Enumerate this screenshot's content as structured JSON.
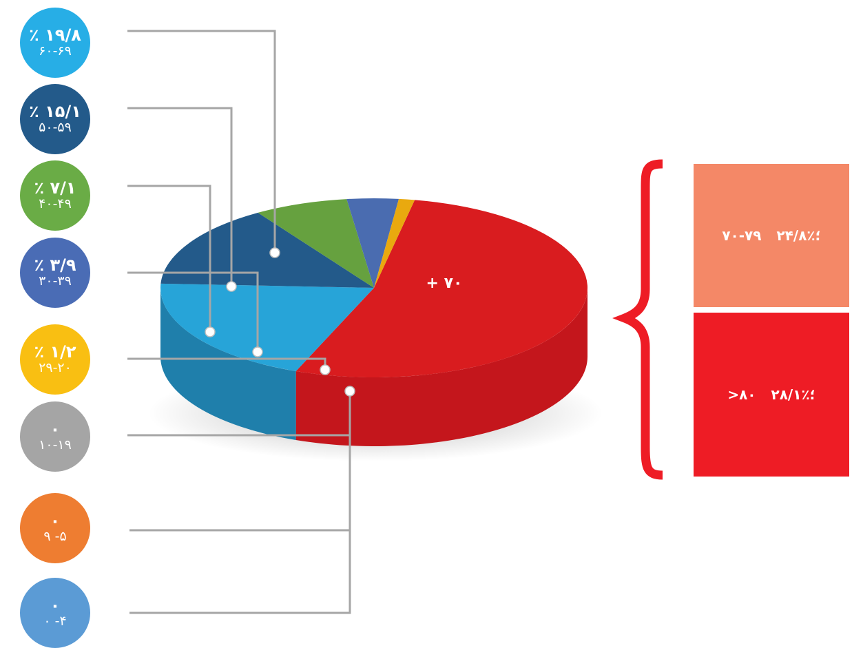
{
  "chart_data": {
    "type": "pie",
    "slices": [
      {
        "name": "+ ۷۰",
        "value": 52.9,
        "color": "#d91c1f",
        "side_color": "#c4161c"
      },
      {
        "name": "۶۰-۶۹",
        "value": 19.8,
        "color": "#27a4d8",
        "side_color": "#1f7fab"
      },
      {
        "name": "۵۰-۵۹",
        "value": 15.1,
        "color": "#235a8a",
        "side_color": "#1a4168"
      },
      {
        "name": "۴۰-۴۹",
        "value": 7.1,
        "color": "#66a13f",
        "side_color": "#44732b"
      },
      {
        "name": "۳۰-۳۹",
        "value": 3.9,
        "color": "#4a6cb0",
        "side_color": "#2f4a83"
      },
      {
        "name": "۲۹-۲۰",
        "value": 1.2,
        "color": "#e9a90f",
        "side_color": "#b38108"
      },
      {
        "name": "۱۰-۱۹",
        "value": 0,
        "color": "#a5a5a5",
        "side_color": "#7d7d7d"
      },
      {
        "name": "۹ -۵",
        "value": 0,
        "color": "#ee7d31",
        "side_color": "#b85e20"
      },
      {
        "name": "۰ -۴",
        "value": 0,
        "color": "#5b9bd5",
        "side_color": "#3f76a8"
      }
    ],
    "center_label": "+ ۷۰"
  },
  "labels": [
    {
      "pct": "٪ ۱۹/۸",
      "range": "۶۰-۶۹",
      "color": "#27aee6"
    },
    {
      "pct": "٪ ۱۵/۱",
      "range": "۵۰-۵۹",
      "color": "#235a8a"
    },
    {
      "pct": "٪ ۷/۱",
      "range": "۴۰-۴۹",
      "color": "#6aac46"
    },
    {
      "pct": "٪ ۳/۹",
      "range": "۳۰-۳۹",
      "color": "#4a6cb5"
    },
    {
      "pct": "٪ ۱/۲",
      "range": "۲۹-۲۰",
      "color": "#f9bf12"
    },
    {
      "pct": "۰",
      "range": "۱۰-۱۹",
      "color": "#a5a5a5"
    },
    {
      "pct": "۰",
      "range": "۹ -۵",
      "color": "#ee7d31"
    },
    {
      "pct": "۰",
      "range": "۰ -۴",
      "color": "#5b9bd5"
    }
  ],
  "breakdown": {
    "brace_color": "#ee1c25",
    "top": {
      "pct": "؛٪۲۴/۸",
      "range": "۷۰-۷۹",
      "color": "#f48867"
    },
    "bottom": {
      "pct": "؛٪۲۸/۱",
      "range": ">۸۰",
      "color": "#ee1c25"
    }
  }
}
